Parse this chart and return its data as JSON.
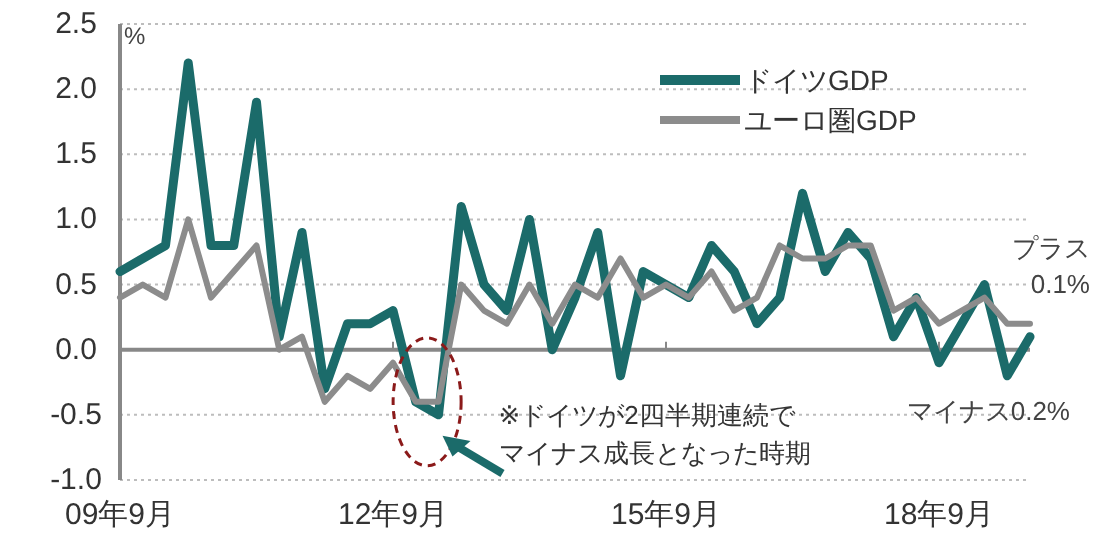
{
  "chart_data": {
    "type": "line",
    "ylabel": "%",
    "categories": [
      "09年9月",
      null,
      null,
      null,
      null,
      null,
      null,
      null,
      null,
      null,
      null,
      null,
      "12年9月",
      null,
      null,
      null,
      null,
      null,
      null,
      null,
      null,
      null,
      null,
      null,
      "15年9月",
      null,
      null,
      null,
      null,
      null,
      null,
      null,
      null,
      null,
      null,
      null,
      "18年9月",
      null,
      null,
      null,
      null
    ],
    "series": [
      {
        "name": "ドイツGDP",
        "color": "#1b6b6a",
        "values": [
          0.6,
          0.7,
          0.8,
          2.2,
          0.8,
          0.8,
          1.9,
          0.1,
          0.9,
          -0.3,
          0.2,
          0.2,
          0.3,
          -0.4,
          -0.5,
          1.1,
          0.5,
          0.3,
          1.0,
          0.0,
          0.4,
          0.9,
          -0.2,
          0.6,
          0.5,
          0.4,
          0.8,
          0.6,
          0.2,
          0.4,
          1.2,
          0.6,
          0.9,
          0.7,
          0.1,
          0.4,
          -0.1,
          0.2,
          0.5,
          -0.2,
          0.1
        ]
      },
      {
        "name": "ユーロ圏GDP",
        "color": "#8c8c8c",
        "values": [
          0.4,
          0.5,
          0.4,
          1.0,
          0.4,
          0.6,
          0.8,
          0.0,
          0.1,
          -0.4,
          -0.2,
          -0.3,
          -0.1,
          -0.4,
          -0.4,
          0.5,
          0.3,
          0.2,
          0.5,
          0.2,
          0.5,
          0.4,
          0.7,
          0.4,
          0.5,
          0.4,
          0.6,
          0.3,
          0.4,
          0.8,
          0.7,
          0.7,
          0.8,
          0.8,
          0.3,
          0.4,
          0.2,
          0.3,
          0.4,
          0.2,
          0.2
        ]
      }
    ],
    "ylim": [
      -1.0,
      2.5
    ],
    "yticks": [
      {
        "value": -1.0,
        "label": "-1.0"
      },
      -0.5,
      {
        "value": 0,
        "label": "0.0"
      },
      0.5,
      {
        "value": 1.0,
        "label": "1.0"
      },
      1.5,
      {
        "value": 2.0,
        "label": "2.0"
      },
      2.5
    ],
    "grid": "y",
    "legend": "top right",
    "marker": "none",
    "line_style": "solid",
    "annotations": [
      "※ドイツが2四半期連続で",
      "マイナス成長となった時期",
      "プラス",
      "0.1%",
      "マイナス0.2%"
    ]
  }
}
